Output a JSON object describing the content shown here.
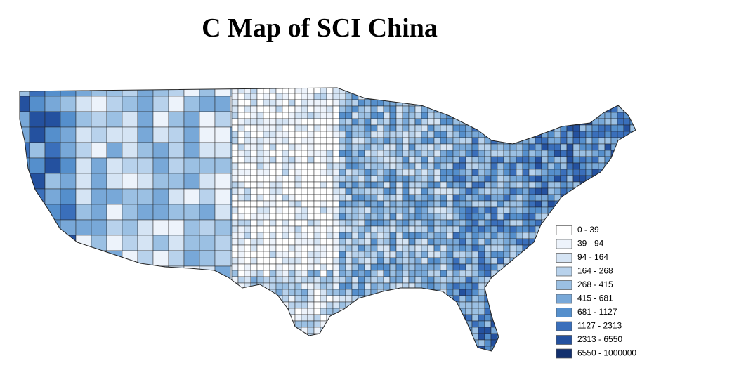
{
  "title": "C  Map of SCI China",
  "legend": {
    "items": [
      {
        "label": "0 - 39",
        "color": "#ffffff"
      },
      {
        "label": "39 - 94",
        "color": "#edf3fb"
      },
      {
        "label": "94 - 164",
        "color": "#d5e4f4"
      },
      {
        "label": "164 - 268",
        "color": "#b8d2ec"
      },
      {
        "label": "268 - 415",
        "color": "#9bc0e3"
      },
      {
        "label": "415 - 681",
        "color": "#78a8d8"
      },
      {
        "label": "681 - 1127",
        "color": "#558fcc"
      },
      {
        "label": "1127 - 2313",
        "color": "#3a6fbb"
      },
      {
        "label": "2313 - 6550",
        "color": "#24519f"
      },
      {
        "label": "6550 - 1000000",
        "color": "#12306e"
      }
    ]
  }
}
